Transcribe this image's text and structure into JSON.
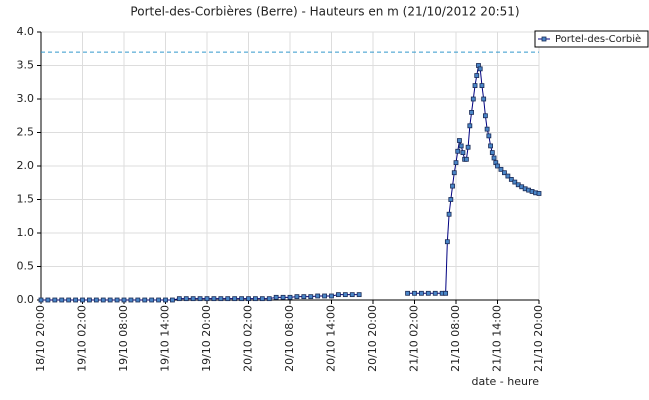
{
  "chart_data": {
    "type": "line",
    "title": "Portel-des-Corbières (Berre) - Hauteurs en m (21/10/2012 20:51)",
    "x_label": "date - heure",
    "x": [
      "18/10 20:00",
      "18/10 21:00",
      "18/10 22:00",
      "18/10 23:00",
      "19/10 00:00",
      "19/10 01:00",
      "19/10 02:00",
      "19/10 03:00",
      "19/10 04:00",
      "19/10 05:00",
      "19/10 06:00",
      "19/10 07:00",
      "19/10 08:00",
      "19/10 09:00",
      "19/10 10:00",
      "19/10 11:00",
      "19/10 12:00",
      "19/10 13:00",
      "19/10 14:00",
      "19/10 15:00",
      "19/10 16:00",
      "19/10 17:00",
      "19/10 18:00",
      "19/10 19:00",
      "19/10 20:00",
      "19/10 21:00",
      "19/10 22:00",
      "19/10 23:00",
      "20/10 00:00",
      "20/10 01:00",
      "20/10 02:00",
      "20/10 03:00",
      "20/10 04:00",
      "20/10 05:00",
      "20/10 06:00",
      "20/10 07:00",
      "20/10 08:00",
      "20/10 09:00",
      "20/10 10:00",
      "20/10 11:00",
      "20/10 12:00",
      "20/10 13:00",
      "20/10 14:00",
      "20/10 15:00",
      "20/10 16:00",
      "20/10 17:00",
      "20/10 18:00",
      "20/10 21:00",
      "21/10 01:00",
      "21/10 02:00",
      "21/10 03:00",
      "21/10 04:00",
      "21/10 05:00",
      "21/10 06:00",
      "21/10 06:30",
      "21/10 06:45",
      "21/10 07:00",
      "21/10 07:15",
      "21/10 07:30",
      "21/10 07:45",
      "21/10 08:00",
      "21/10 08:15",
      "21/10 08:30",
      "21/10 08:45",
      "21/10 09:00",
      "21/10 09:15",
      "21/10 09:30",
      "21/10 09:45",
      "21/10 10:00",
      "21/10 10:15",
      "21/10 10:30",
      "21/10 10:45",
      "21/10 11:00",
      "21/10 11:15",
      "21/10 11:30",
      "21/10 11:45",
      "21/10 12:00",
      "21/10 12:15",
      "21/10 12:30",
      "21/10 12:45",
      "21/10 13:00",
      "21/10 13:15",
      "21/10 13:30",
      "21/10 13:45",
      "21/10 14:00",
      "21/10 14:30",
      "21/10 15:00",
      "21/10 15:30",
      "21/10 16:00",
      "21/10 16:30",
      "21/10 17:00",
      "21/10 17:30",
      "21/10 18:00",
      "21/10 18:30",
      "21/10 19:00",
      "21/10 19:30",
      "21/10 20:00"
    ],
    "series": [
      {
        "name": "Portel-des-Corbiè",
        "color": "#000080",
        "marker_color": "#4a86c8",
        "values": [
          0,
          0,
          0,
          0,
          0,
          0,
          0,
          0,
          0,
          0,
          0,
          0,
          0,
          0,
          0,
          0,
          0,
          0,
          0,
          0,
          0.02,
          0.02,
          0.02,
          0.02,
          0.02,
          0.02,
          0.02,
          0.02,
          0.02,
          0.02,
          0.02,
          0.02,
          0.02,
          0.02,
          0.04,
          0.04,
          0.04,
          0.05,
          0.05,
          0.05,
          0.06,
          0.06,
          0.06,
          0.08,
          0.08,
          0.08,
          0.08,
          null,
          0.1,
          0.1,
          0.1,
          0.1,
          0.1,
          0.1,
          0.1,
          0.87,
          1.28,
          1.5,
          1.7,
          1.9,
          2.05,
          2.22,
          2.38,
          2.3,
          2.2,
          2.1,
          2.1,
          2.28,
          2.6,
          2.8,
          3.0,
          3.2,
          3.35,
          3.5,
          3.45,
          3.2,
          3.0,
          2.75,
          2.55,
          2.45,
          2.3,
          2.2,
          2.12,
          2.05,
          2.0,
          1.95,
          1.9,
          1.85,
          1.8,
          1.76,
          1.72,
          1.69,
          1.66,
          1.64,
          1.62,
          1.6,
          1.59
        ]
      }
    ],
    "threshold": 3.7,
    "threshold_color": "#3399cc",
    "xlim": [
      "18/10 20:00",
      "21/10 20:00"
    ],
    "xticks": [
      "18/10 20:00",
      "19/10 02:00",
      "19/10 08:00",
      "19/10 14:00",
      "19/10 20:00",
      "20/10 02:00",
      "20/10 08:00",
      "20/10 14:00",
      "20/10 20:00",
      "21/10 02:00",
      "21/10 08:00",
      "21/10 14:00",
      "21/10 20:00"
    ],
    "ylim": [
      0,
      4
    ],
    "yticks": [
      {
        "value": 0,
        "label": "0.0"
      },
      0.5,
      {
        "value": 1,
        "label": "1.0"
      },
      1.5,
      {
        "value": 2,
        "label": "2.0"
      },
      2.5,
      {
        "value": 3,
        "label": "3.0"
      },
      3.5,
      {
        "value": 4,
        "label": "4.0"
      }
    ],
    "grid": true,
    "legend": "top-right"
  }
}
